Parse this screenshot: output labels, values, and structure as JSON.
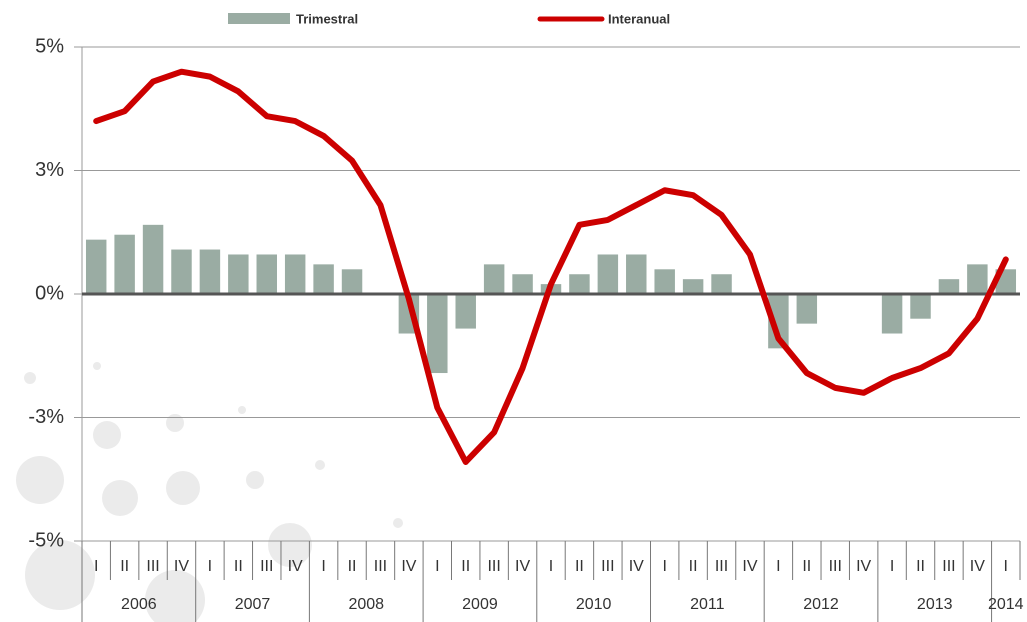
{
  "chart_data": {
    "type": "bar_line",
    "categories": [
      "I",
      "II",
      "III",
      "IV",
      "I",
      "II",
      "III",
      "IV",
      "I",
      "II",
      "III",
      "IV",
      "I",
      "II",
      "III",
      "IV",
      "I",
      "II",
      "III",
      "IV",
      "I",
      "II",
      "III",
      "IV",
      "I",
      "II",
      "III",
      "IV",
      "I",
      "II",
      "III",
      "IV",
      "I"
    ],
    "years": [
      "2006",
      "2007",
      "2008",
      "2009",
      "2010",
      "2011",
      "2012",
      "2013",
      "2014"
    ],
    "series": [
      {
        "name": "Trimestral",
        "type": "bar",
        "color": "#9aaca3",
        "values": [
          1.1,
          1.2,
          1.4,
          0.9,
          0.9,
          0.8,
          0.8,
          0.8,
          0.6,
          0.5,
          0,
          -0.8,
          -1.6,
          -0.7,
          0.6,
          0.4,
          0.2,
          0.4,
          0.8,
          0.8,
          0.5,
          0.3,
          0.4,
          0,
          -1.1,
          -0.6,
          0,
          0,
          -0.8,
          -0.5,
          0.3,
          0.6,
          0.5
        ]
      },
      {
        "name": "Interanual",
        "type": "line",
        "color": "#cc0000",
        "values": [
          3.5,
          3.7,
          4.3,
          4.5,
          4.4,
          4.1,
          3.6,
          3.5,
          3.2,
          2.7,
          1.8,
          -0.1,
          -2.3,
          -3.4,
          -2.8,
          -1.5,
          0.2,
          1.4,
          1.5,
          1.8,
          2.1,
          2.0,
          1.6,
          0.8,
          -0.9,
          -1.6,
          -1.9,
          -2.0,
          -1.7,
          -1.5,
          -1.2,
          -0.5,
          0.7
        ]
      }
    ],
    "ylim": [
      -5,
      5
    ],
    "yticks": [
      {
        "value": -5,
        "label": "-5%"
      },
      {
        "value": -2.5,
        "label": "-3%"
      },
      {
        "value": 0,
        "label": "0%"
      },
      {
        "value": 2.5,
        "label": "3%"
      },
      {
        "value": 5,
        "label": "5%"
      }
    ],
    "grid": true
  }
}
